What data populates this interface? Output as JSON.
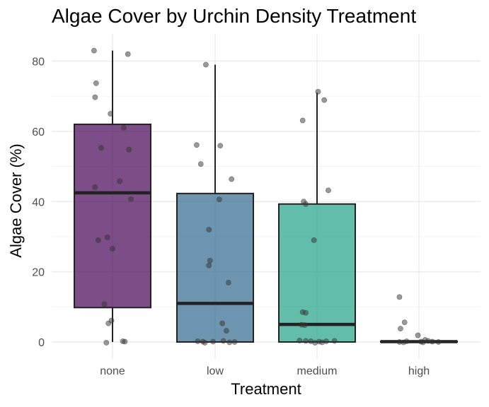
{
  "chart_data": {
    "type": "box",
    "title": "Algae Cover by Urchin Density Treatment",
    "xlabel": "Treatment",
    "ylabel": "Algae Cover (%)",
    "ylim": [
      -5,
      87
    ],
    "yticks": [
      0,
      20,
      40,
      60,
      80
    ],
    "grid": true,
    "legend": "none",
    "categories": [
      "none",
      "low",
      "medium",
      "high"
    ],
    "colors": {
      "none": "#440154",
      "low": "#31688E",
      "medium": "#1FA187",
      "high": "#FDE725",
      "box_outline": "#222222",
      "points": "#333333"
    },
    "boxes": [
      {
        "category": "none",
        "q1": 9.8,
        "median": 42.5,
        "q3": 62.0,
        "whisker_low": 0,
        "whisker_high": 83
      },
      {
        "category": "low",
        "q1": 0,
        "median": 11.0,
        "q3": 42.3,
        "whisker_low": 0,
        "whisker_high": 79
      },
      {
        "category": "medium",
        "q1": 0,
        "median": 5.0,
        "q3": 39.3,
        "whisker_low": 0,
        "whisker_high": 71
      },
      {
        "category": "high",
        "q1": 0,
        "median": 0.1,
        "q3": 0.2,
        "whisker_low": 0,
        "whisker_high": 0.3
      }
    ],
    "points": [
      {
        "category": "none",
        "x_offset": -0.18,
        "y": 83.0
      },
      {
        "category": "none",
        "x_offset": 0.15,
        "y": 82.0
      },
      {
        "category": "none",
        "x_offset": -0.16,
        "y": 73.7
      },
      {
        "category": "none",
        "x_offset": -0.17,
        "y": 69.7
      },
      {
        "category": "none",
        "x_offset": -0.02,
        "y": 65.0
      },
      {
        "category": "none",
        "x_offset": 0.11,
        "y": 61.0
      },
      {
        "category": "none",
        "x_offset": -0.11,
        "y": 55.3
      },
      {
        "category": "none",
        "x_offset": 0.16,
        "y": 54.8
      },
      {
        "category": "none",
        "x_offset": 0.07,
        "y": 45.8
      },
      {
        "category": "none",
        "x_offset": -0.17,
        "y": 44.1
      },
      {
        "category": "none",
        "x_offset": 0.18,
        "y": 40.7
      },
      {
        "category": "none",
        "x_offset": -0.05,
        "y": 29.8
      },
      {
        "category": "none",
        "x_offset": -0.14,
        "y": 29.0
      },
      {
        "category": "none",
        "x_offset": 0.0,
        "y": 26.6
      },
      {
        "category": "none",
        "x_offset": -0.08,
        "y": 10.8
      },
      {
        "category": "none",
        "x_offset": -0.01,
        "y": 6.1
      },
      {
        "category": "none",
        "x_offset": -0.04,
        "y": 5.3
      },
      {
        "category": "none",
        "x_offset": 0.1,
        "y": 0.2
      },
      {
        "category": "none",
        "x_offset": 0.12,
        "y": 0.1
      },
      {
        "category": "none",
        "x_offset": -0.06,
        "y": -0.2
      },
      {
        "category": "low",
        "x_offset": -0.09,
        "y": 79.0
      },
      {
        "category": "low",
        "x_offset": -0.18,
        "y": 56.1
      },
      {
        "category": "low",
        "x_offset": 0.05,
        "y": 55.9
      },
      {
        "category": "low",
        "x_offset": -0.14,
        "y": 50.7
      },
      {
        "category": "low",
        "x_offset": 0.16,
        "y": 46.4
      },
      {
        "category": "low",
        "x_offset": 0.04,
        "y": 40.6
      },
      {
        "category": "low",
        "x_offset": -0.06,
        "y": 32.0
      },
      {
        "category": "low",
        "x_offset": -0.05,
        "y": 23.2
      },
      {
        "category": "low",
        "x_offset": -0.06,
        "y": 21.8
      },
      {
        "category": "low",
        "x_offset": 0.13,
        "y": 16.9
      },
      {
        "category": "low",
        "x_offset": 0.07,
        "y": 5.3
      },
      {
        "category": "low",
        "x_offset": 0.11,
        "y": 3.2
      },
      {
        "category": "low",
        "x_offset": -0.17,
        "y": 0.2
      },
      {
        "category": "low",
        "x_offset": -0.12,
        "y": 0.1
      },
      {
        "category": "low",
        "x_offset": -0.02,
        "y": 0.1
      },
      {
        "category": "low",
        "x_offset": 0.08,
        "y": 0.3
      },
      {
        "category": "low",
        "x_offset": 0.14,
        "y": -0.1
      },
      {
        "category": "low",
        "x_offset": 0.19,
        "y": 0.0
      },
      {
        "category": "low",
        "x_offset": -0.1,
        "y": -0.2
      },
      {
        "category": "medium",
        "x_offset": 0.01,
        "y": 71.3
      },
      {
        "category": "medium",
        "x_offset": 0.07,
        "y": 68.9
      },
      {
        "category": "medium",
        "x_offset": -0.14,
        "y": 63.1
      },
      {
        "category": "medium",
        "x_offset": 0.11,
        "y": 43.2
      },
      {
        "category": "medium",
        "x_offset": -0.13,
        "y": 40.0
      },
      {
        "category": "medium",
        "x_offset": -0.11,
        "y": 39.3
      },
      {
        "category": "medium",
        "x_offset": -0.03,
        "y": 29.0
      },
      {
        "category": "medium",
        "x_offset": -0.14,
        "y": 8.5
      },
      {
        "category": "medium",
        "x_offset": -0.11,
        "y": 8.3
      },
      {
        "category": "medium",
        "x_offset": -0.15,
        "y": 4.9
      },
      {
        "category": "medium",
        "x_offset": -0.12,
        "y": 4.8
      },
      {
        "category": "medium",
        "x_offset": -0.17,
        "y": 0.4
      },
      {
        "category": "medium",
        "x_offset": -0.11,
        "y": 0.3
      },
      {
        "category": "medium",
        "x_offset": -0.06,
        "y": 0.2
      },
      {
        "category": "medium",
        "x_offset": 0.02,
        "y": 0.1
      },
      {
        "category": "medium",
        "x_offset": 0.09,
        "y": 0.2
      },
      {
        "category": "medium",
        "x_offset": 0.17,
        "y": 0.3
      },
      {
        "category": "medium",
        "x_offset": 0.05,
        "y": -0.1
      },
      {
        "category": "medium",
        "x_offset": -0.02,
        "y": -0.2
      },
      {
        "category": "high",
        "x_offset": -0.19,
        "y": 12.8
      },
      {
        "category": "high",
        "x_offset": -0.14,
        "y": 5.6
      },
      {
        "category": "high",
        "x_offset": -0.18,
        "y": 3.8
      },
      {
        "category": "high",
        "x_offset": -0.01,
        "y": 1.9
      },
      {
        "category": "high",
        "x_offset": -0.19,
        "y": 0.0
      },
      {
        "category": "high",
        "x_offset": -0.12,
        "y": 0.2
      },
      {
        "category": "high",
        "x_offset": -0.15,
        "y": -0.1
      },
      {
        "category": "high",
        "x_offset": 0.02,
        "y": 0.1
      },
      {
        "category": "high",
        "x_offset": 0.06,
        "y": 0.6
      },
      {
        "category": "high",
        "x_offset": 0.09,
        "y": 0.3
      },
      {
        "category": "high",
        "x_offset": 0.04,
        "y": -0.1
      },
      {
        "category": "high",
        "x_offset": 0.13,
        "y": 0.1
      },
      {
        "category": "high",
        "x_offset": 0.19,
        "y": 0.0
      }
    ]
  }
}
